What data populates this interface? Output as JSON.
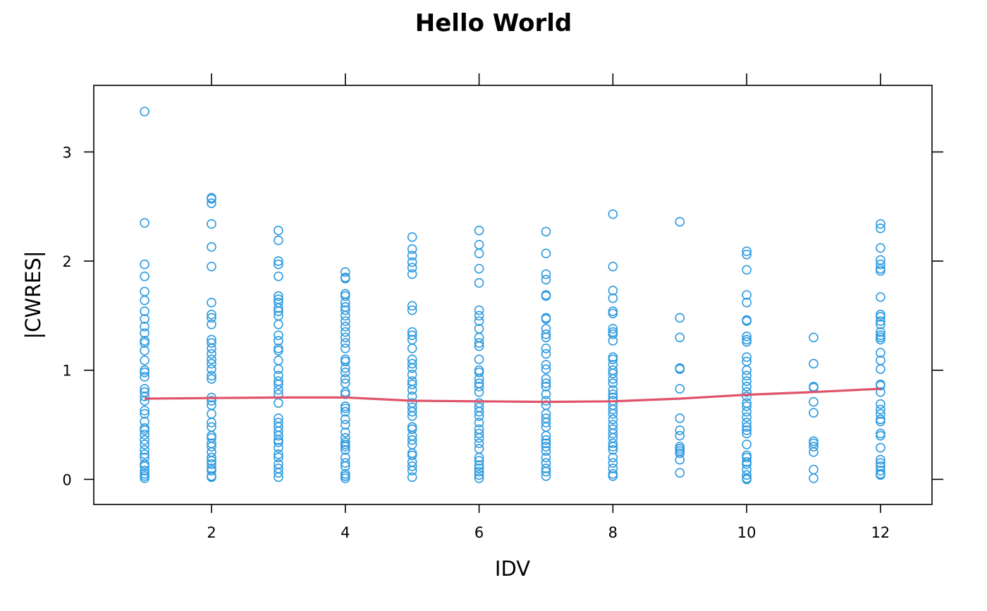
{
  "chart_data": {
    "type": "scatter",
    "title": "Hello World",
    "xlabel": "IDV",
    "ylabel": "|CWRES|",
    "xlim": [
      0.24,
      12.77
    ],
    "ylim": [
      -0.23,
      3.61
    ],
    "x_ticks": [
      2,
      4,
      6,
      8,
      10,
      12
    ],
    "y_ticks": [
      0,
      1,
      2,
      3
    ],
    "grid": false,
    "colors": {
      "points": "#2c9ae0",
      "smooth": "#df536b"
    },
    "points": [
      {
        "x": 1,
        "y": [
          3.37,
          2.35,
          1.97,
          1.86,
          1.72,
          1.64,
          1.54,
          1.47,
          1.4,
          1.34,
          1.27,
          1.25,
          1.18,
          1.09,
          1.0,
          0.98,
          0.94,
          0.83,
          0.8,
          0.76,
          0.72,
          0.63,
          0.6,
          0.53,
          0.47,
          0.45,
          0.41,
          0.36,
          0.32,
          0.27,
          0.23,
          0.2,
          0.14,
          0.12,
          0.08,
          0.05,
          0.03,
          0.01
        ]
      },
      {
        "x": 2,
        "y": [
          2.58,
          2.57,
          2.53,
          2.34,
          2.13,
          1.95,
          1.62,
          1.51,
          1.48,
          1.42,
          1.28,
          1.25,
          1.2,
          1.15,
          1.1,
          1.06,
          1.01,
          0.95,
          0.92,
          0.75,
          0.72,
          0.68,
          0.6,
          0.52,
          0.48,
          0.4,
          0.38,
          0.33,
          0.3,
          0.25,
          0.2,
          0.17,
          0.14,
          0.1,
          0.08,
          0.03,
          0.02
        ]
      },
      {
        "x": 3,
        "y": [
          2.28,
          2.19,
          2.0,
          1.97,
          1.86,
          1.68,
          1.65,
          1.62,
          1.57,
          1.54,
          1.5,
          1.42,
          1.32,
          1.27,
          1.2,
          1.18,
          1.09,
          1.01,
          0.95,
          0.9,
          0.87,
          0.82,
          0.78,
          0.7,
          0.56,
          0.52,
          0.48,
          0.44,
          0.4,
          0.36,
          0.34,
          0.29,
          0.23,
          0.2,
          0.14,
          0.1,
          0.06,
          0.02
        ]
      },
      {
        "x": 4,
        "y": [
          1.9,
          1.85,
          1.84,
          1.7,
          1.68,
          1.62,
          1.58,
          1.55,
          1.5,
          1.45,
          1.4,
          1.35,
          1.3,
          1.25,
          1.2,
          1.1,
          1.08,
          1.02,
          0.98,
          0.92,
          0.88,
          0.8,
          0.78,
          0.67,
          0.65,
          0.62,
          0.55,
          0.5,
          0.43,
          0.38,
          0.34,
          0.32,
          0.3,
          0.27,
          0.2,
          0.15,
          0.12,
          0.05,
          0.03,
          0.01
        ]
      },
      {
        "x": 5,
        "y": [
          2.22,
          2.11,
          2.05,
          1.99,
          1.94,
          1.88,
          1.59,
          1.55,
          1.35,
          1.32,
          1.28,
          1.2,
          1.1,
          1.06,
          1.02,
          0.96,
          0.9,
          0.87,
          0.82,
          0.76,
          0.7,
          0.66,
          0.62,
          0.58,
          0.48,
          0.46,
          0.4,
          0.36,
          0.32,
          0.24,
          0.22,
          0.16,
          0.12,
          0.08,
          0.02
        ]
      },
      {
        "x": 6,
        "y": [
          2.28,
          2.15,
          2.07,
          1.93,
          1.8,
          1.55,
          1.5,
          1.45,
          1.38,
          1.3,
          1.25,
          1.22,
          1.1,
          1.0,
          0.98,
          0.92,
          0.88,
          0.85,
          0.8,
          0.7,
          0.66,
          0.62,
          0.58,
          0.52,
          0.46,
          0.42,
          0.38,
          0.33,
          0.28,
          0.2,
          0.17,
          0.13,
          0.1,
          0.07,
          0.04,
          0.01
        ]
      },
      {
        "x": 7,
        "y": [
          2.27,
          2.07,
          1.88,
          1.83,
          1.69,
          1.68,
          1.48,
          1.47,
          1.38,
          1.33,
          1.3,
          1.2,
          1.15,
          1.05,
          1.01,
          0.92,
          0.88,
          0.85,
          0.78,
          0.72,
          0.68,
          0.6,
          0.56,
          0.52,
          0.48,
          0.4,
          0.36,
          0.33,
          0.3,
          0.26,
          0.2,
          0.15,
          0.1,
          0.07,
          0.03
        ]
      },
      {
        "x": 8,
        "y": [
          2.43,
          1.95,
          1.73,
          1.66,
          1.54,
          1.52,
          1.38,
          1.35,
          1.33,
          1.27,
          1.12,
          1.1,
          1.05,
          1.0,
          0.97,
          0.92,
          0.88,
          0.82,
          0.78,
          0.75,
          0.72,
          0.68,
          0.64,
          0.6,
          0.55,
          0.5,
          0.46,
          0.42,
          0.38,
          0.33,
          0.3,
          0.27,
          0.2,
          0.15,
          0.1,
          0.05,
          0.03
        ]
      },
      {
        "x": 9,
        "y": [
          2.36,
          1.48,
          1.3,
          1.02,
          1.01,
          0.83,
          0.56,
          0.45,
          0.4,
          0.3,
          0.28,
          0.26,
          0.24,
          0.18,
          0.06
        ]
      },
      {
        "x": 10,
        "y": [
          2.09,
          2.06,
          1.92,
          1.69,
          1.62,
          1.46,
          1.45,
          1.31,
          1.28,
          1.26,
          1.12,
          1.08,
          1.0,
          0.95,
          0.9,
          0.85,
          0.8,
          0.76,
          0.7,
          0.67,
          0.62,
          0.57,
          0.52,
          0.48,
          0.45,
          0.42,
          0.32,
          0.22,
          0.2,
          0.16,
          0.14,
          0.09,
          0.04,
          0.01,
          0.0
        ]
      },
      {
        "x": 11,
        "y": [
          1.3,
          1.06,
          0.85,
          0.84,
          0.71,
          0.61,
          0.35,
          0.33,
          0.3,
          0.25,
          0.09,
          0.01
        ]
      },
      {
        "x": 12,
        "y": [
          2.34,
          2.3,
          2.12,
          2.01,
          1.97,
          1.93,
          1.91,
          1.67,
          1.51,
          1.49,
          1.45,
          1.42,
          1.35,
          1.32,
          1.3,
          1.28,
          1.16,
          1.09,
          1.01,
          0.87,
          0.86,
          0.8,
          0.69,
          0.64,
          0.6,
          0.55,
          0.53,
          0.42,
          0.4,
          0.29,
          0.18,
          0.15,
          0.12,
          0.08,
          0.05,
          0.04
        ]
      }
    ],
    "smooth": {
      "x": [
        1,
        2,
        3,
        4,
        5,
        6,
        7,
        8,
        9,
        10,
        11,
        12
      ],
      "y": [
        0.74,
        0.745,
        0.75,
        0.75,
        0.72,
        0.715,
        0.71,
        0.715,
        0.74,
        0.775,
        0.8,
        0.83
      ]
    }
  }
}
